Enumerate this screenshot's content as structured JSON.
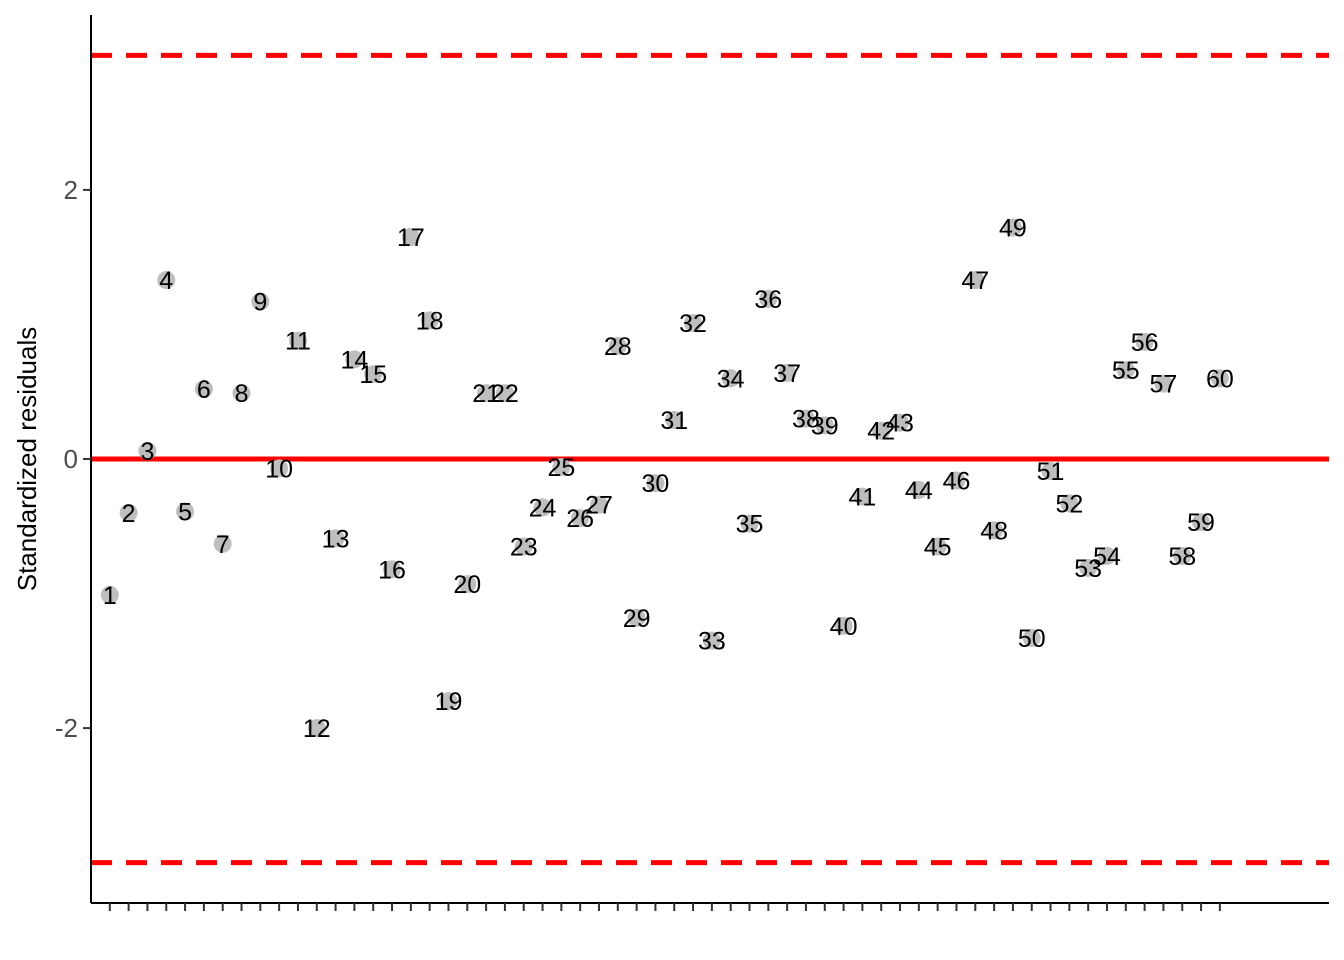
{
  "chart_data": {
    "type": "scatter",
    "title": "",
    "xlabel": "",
    "ylabel": "Standardized residuals",
    "x": [
      1,
      2,
      3,
      4,
      5,
      6,
      7,
      8,
      9,
      10,
      11,
      12,
      13,
      14,
      15,
      16,
      17,
      18,
      19,
      20,
      21,
      22,
      23,
      24,
      25,
      26,
      27,
      28,
      29,
      30,
      31,
      32,
      33,
      34,
      35,
      36,
      37,
      38,
      39,
      40,
      41,
      42,
      43,
      44,
      45,
      46,
      47,
      48,
      49,
      50,
      51,
      52,
      53,
      54,
      55,
      56,
      57,
      58,
      59,
      60
    ],
    "point_labels": [
      "1",
      "2",
      "3",
      "4",
      "5",
      "6",
      "7",
      "8",
      "9",
      "10",
      "11",
      "12",
      "13",
      "14",
      "15",
      "16",
      "17",
      "18",
      "19",
      "20",
      "21",
      "22",
      "23",
      "24",
      "25",
      "26",
      "27",
      "28",
      "29",
      "30",
      "31",
      "32",
      "33",
      "34",
      "35",
      "36",
      "37",
      "38",
      "39",
      "40",
      "41",
      "42",
      "43",
      "44",
      "45",
      "46",
      "47",
      "48",
      "49",
      "50",
      "51",
      "52",
      "53",
      "54",
      "55",
      "56",
      "57",
      "58",
      "59",
      "60"
    ],
    "values": [
      -1.01,
      -0.4,
      0.06,
      1.33,
      -0.39,
      0.52,
      -0.63,
      0.49,
      1.17,
      -0.07,
      0.88,
      -2.0,
      -0.59,
      0.74,
      0.63,
      -0.82,
      1.65,
      1.03,
      -1.8,
      -0.93,
      0.49,
      0.49,
      -0.65,
      -0.36,
      -0.06,
      -0.44,
      -0.34,
      0.84,
      -1.18,
      -0.18,
      0.29,
      1.01,
      -1.35,
      0.6,
      -0.48,
      1.19,
      0.64,
      0.3,
      0.25,
      -1.24,
      -0.28,
      0.21,
      0.27,
      -0.23,
      -0.65,
      -0.16,
      1.33,
      -0.53,
      1.72,
      -1.33,
      -0.09,
      -0.33,
      -0.81,
      -0.72,
      0.66,
      0.87,
      0.56,
      -0.72,
      -0.47,
      0.6
    ],
    "ylim": [
      -3.3,
      3.3
    ],
    "yticks": [
      -2,
      0,
      2
    ],
    "ytick_labels": [
      "-2",
      "0",
      "2"
    ],
    "reference_lines": [
      {
        "y": 0,
        "style": "solid"
      },
      {
        "y": 3,
        "style": "dashed"
      },
      {
        "y": -3,
        "style": "dashed"
      }
    ],
    "grid": false,
    "legend": "none",
    "colors": {
      "points": "#bebebe",
      "reference": "#ff0000",
      "axis": "#000000"
    }
  }
}
